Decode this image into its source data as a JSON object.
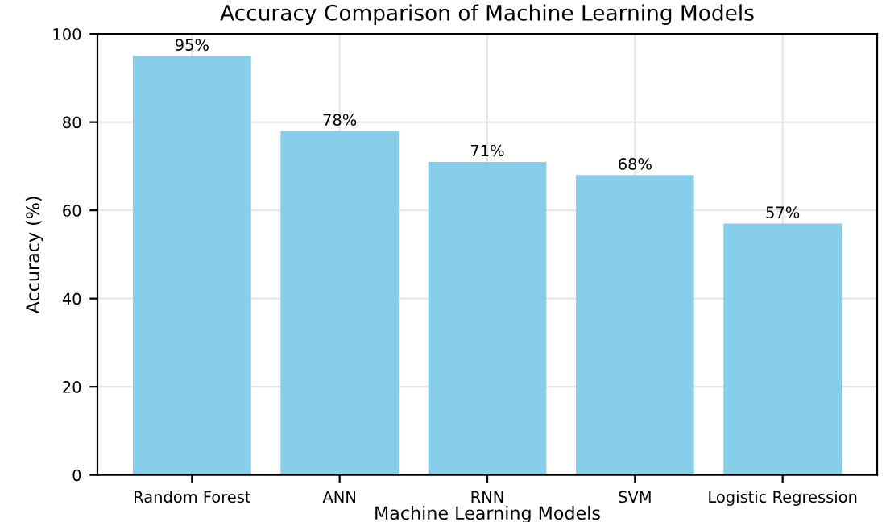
{
  "chart_data": {
    "type": "bar",
    "title": "Accuracy Comparison of Machine Learning Models",
    "xlabel": "Machine Learning Models",
    "ylabel": "Accuracy (%)",
    "categories": [
      "Random Forest",
      "ANN",
      "RNN",
      "SVM",
      "Logistic Regression"
    ],
    "values": [
      95,
      78,
      71,
      68,
      57
    ],
    "value_labels": [
      "95%",
      "78%",
      "71%",
      "68%",
      "57%"
    ],
    "color": "#87ceeb",
    "ylim": [
      0,
      100
    ],
    "yticks": [
      0,
      20,
      40,
      60,
      80,
      100
    ],
    "grid": true
  }
}
